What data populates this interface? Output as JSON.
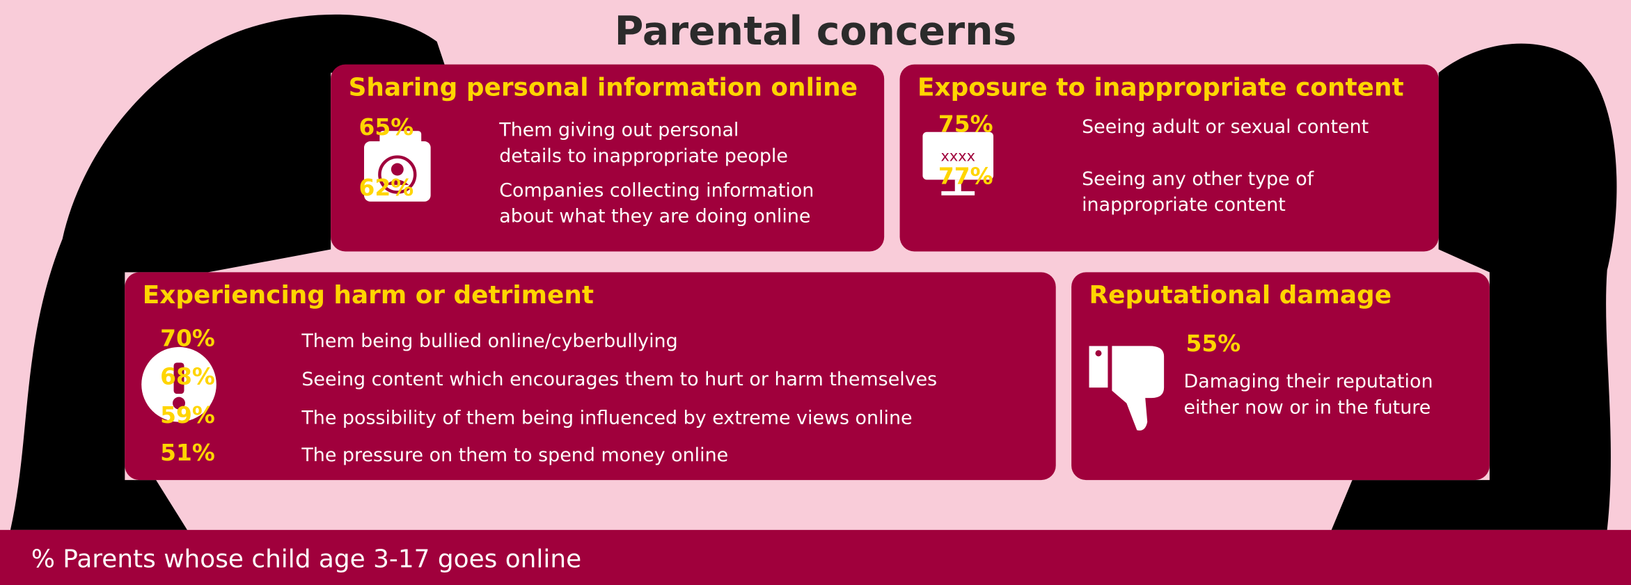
{
  "title": "Parental concerns",
  "panels": [
    {
      "heading": "Sharing personal information online",
      "items": [
        {
          "value": "65%",
          "lines": [
            "Them giving out personal",
            "details to inappropriate people"
          ]
        },
        {
          "value": "62%",
          "lines": [
            "Companies collecting information",
            "about what they are doing online"
          ]
        }
      ]
    },
    {
      "heading": "Exposure to inappropriate content",
      "items": [
        {
          "value": "75%",
          "lines": [
            "Seeing adult or sexual content"
          ]
        },
        {
          "value": "77%",
          "lines": [
            "Seeing any other type of",
            "inappropriate content"
          ]
        }
      ]
    },
    {
      "heading": "Experiencing harm or detriment",
      "items": [
        {
          "value": "70%",
          "lines": [
            "Them being bullied online/cyberbullying"
          ]
        },
        {
          "value": "68%",
          "lines": [
            "Seeing content which encourages them to hurt or harm themselves"
          ]
        },
        {
          "value": "59%",
          "lines": [
            "The possibility of them being influenced by extreme views online"
          ]
        },
        {
          "value": "51%",
          "lines": [
            "The pressure on them to spend money online"
          ]
        }
      ]
    },
    {
      "heading": "Reputational damage",
      "items": [
        {
          "value": "55%",
          "lines": [
            "Damaging their reputation",
            "either now or in the future"
          ]
        }
      ]
    }
  ],
  "footer": "% Parents whose child age 3-17 goes online"
}
